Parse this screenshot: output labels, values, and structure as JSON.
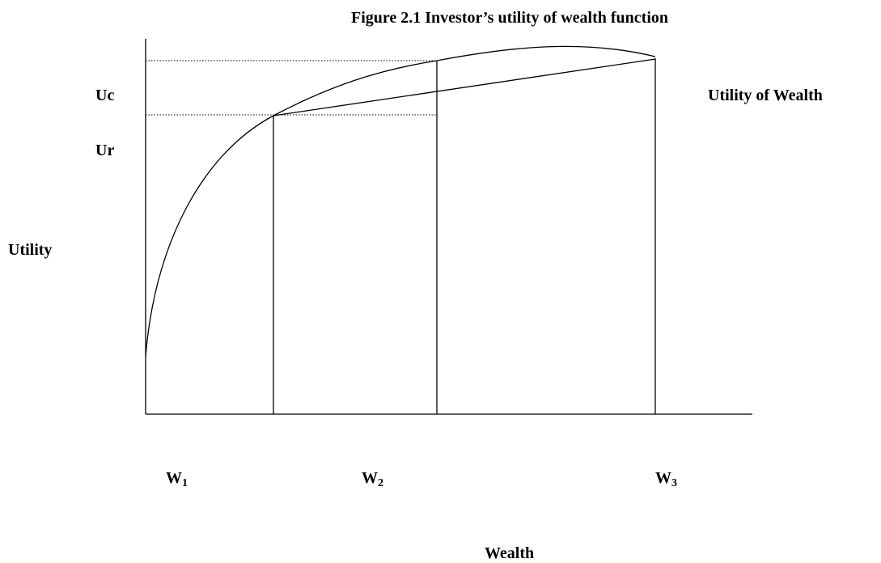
{
  "title": "Figure 2.1 Investor’s utility of wealth function",
  "y_labels": {
    "upper": "Uc",
    "lower": "Ur"
  },
  "y_axis_label": "Utility",
  "curve_label": "Utility of Wealth",
  "x_labels": [
    {
      "base": "W",
      "sub": "1"
    },
    {
      "base": "W",
      "sub": "2"
    },
    {
      "base": "W",
      "sub": "3"
    }
  ],
  "x_axis_label": "Wealth"
}
